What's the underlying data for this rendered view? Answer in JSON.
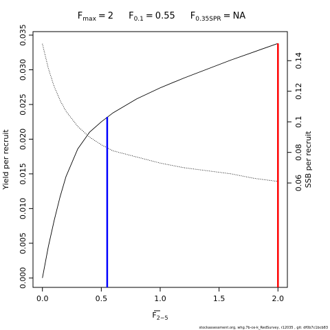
{
  "chart_data": {
    "type": "line",
    "title_items": [
      {
        "symbol": "F",
        "subscript": "max",
        "operator": "=",
        "value": "2"
      },
      {
        "symbol": "F",
        "subscript": "0.1",
        "operator": "=",
        "value": "0.55"
      },
      {
        "symbol": "F",
        "subscript": "0.35SPR",
        "operator": "=",
        "value": "NA"
      }
    ],
    "xlabel": {
      "symbol": "F",
      "subscript": "2−5"
    },
    "ylabel": "Yield per recruit",
    "y2label": "SSB per recruit",
    "footer": "stockassessment.org, whg.7b-ce-k_RedSurvey, r12035 , git: df0b7c1bcb83",
    "x": [
      0,
      0.05,
      0.1,
      0.15,
      0.2,
      0.3,
      0.4,
      0.5,
      0.6,
      0.8,
      1.0,
      1.2,
      1.4,
      1.6,
      1.8,
      2.0
    ],
    "series": [
      {
        "color": "#000000",
        "dash": "solid",
        "values": [
          0,
          0.0045,
          0.0083,
          0.0117,
          0.0146,
          0.0186,
          0.021,
          0.0225,
          0.0238,
          0.0258,
          0.0274,
          0.0288,
          0.0301,
          0.0314,
          0.0326,
          0.0338
        ]
      },
      {
        "color": "#000000",
        "dash": "dotted",
        "axis": "y2",
        "values": [
          0.151,
          0.135,
          0.123,
          0.114,
          0.107,
          0.097,
          0.09,
          0.085,
          0.081,
          0.077,
          0.073,
          0.07,
          0.068,
          0.066,
          0.063,
          0.061
        ]
      }
    ],
    "vlines": [
      {
        "x": 0.55,
        "y": 0.0232,
        "color": "#0000ff"
      },
      {
        "x": 2.0,
        "y": 0.0338,
        "color": "#ff0000"
      }
    ],
    "xlim": [
      -0.08,
      2.08
    ],
    "xticks": [
      {
        "value": 0,
        "label": "0.0"
      },
      0.5,
      {
        "value": 1,
        "label": "1.0"
      },
      1.5,
      {
        "value": 2,
        "label": "2.0"
      }
    ],
    "ylim": [
      -0.00136,
      0.0355
    ],
    "yticks": [
      {
        "value": 0,
        "label": "0.000"
      },
      0.005,
      {
        "value": 0.01,
        "label": "0.010"
      },
      0.015,
      {
        "value": 0.02,
        "label": "0.020"
      },
      0.025,
      {
        "value": 0.03,
        "label": "0.030"
      },
      0.035
    ],
    "y2lim": [
      -0.0083,
      0.159
    ],
    "y2ticks": [
      0.06,
      0.08,
      0.1,
      0.12,
      0.14
    ]
  }
}
